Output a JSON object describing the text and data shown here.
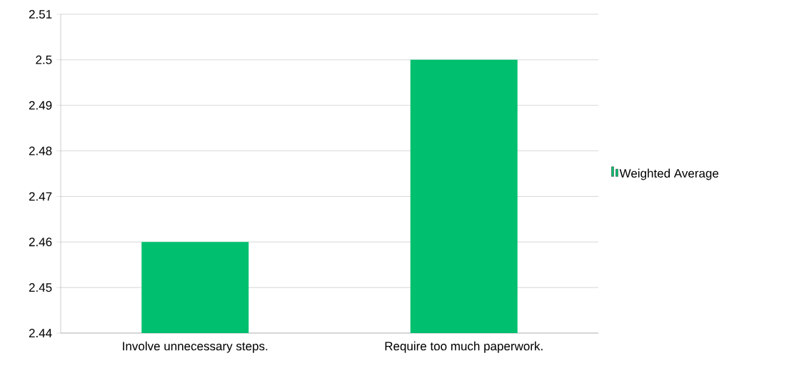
{
  "chart_data": {
    "type": "bar",
    "categories": [
      "Involve unnecessary steps.",
      "Require too much paperwork."
    ],
    "series": [
      {
        "name": "Weighted Average",
        "color": "#00bf6f",
        "values": [
          2.46,
          2.5
        ]
      }
    ],
    "ylim": [
      2.44,
      2.51
    ],
    "yticks": [
      2.44,
      2.45,
      2.46,
      2.47,
      2.48,
      2.49,
      2.5,
      2.51
    ],
    "grid": "y",
    "legend": "right"
  }
}
